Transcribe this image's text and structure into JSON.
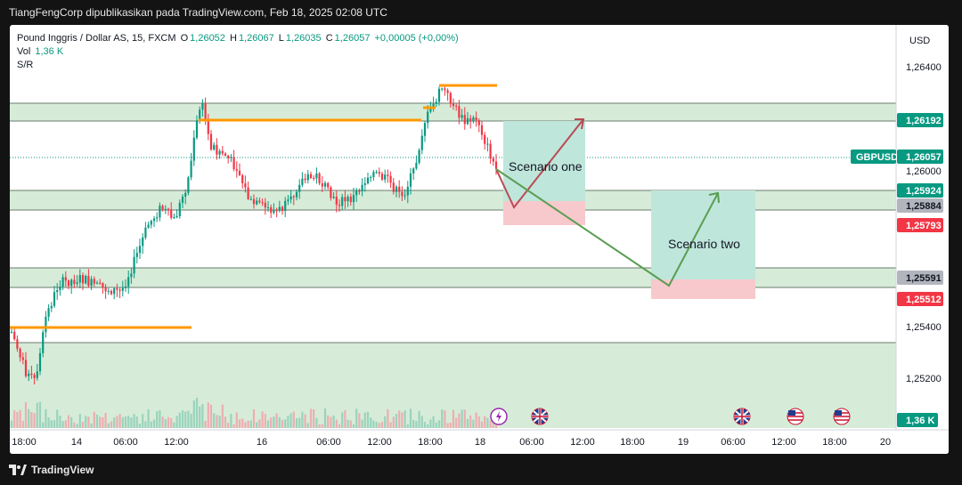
{
  "header": {
    "publish_line": "TiangFengCorp dipublikasikan pada TradingView.com, Feb 18, 2025 02:08 UTC"
  },
  "legend": {
    "symbol_line": "Pound Inggris / Dollar AS, 15, FXCM",
    "ohlc": {
      "o_label": "O",
      "o": "1,26052",
      "h_label": "H",
      "h": "1,26067",
      "l_label": "L",
      "l": "1,26035",
      "c_label": "C",
      "c": "1,26057",
      "change": "+0,00005 (+0,00%)"
    },
    "vol_label": "Vol",
    "vol_value": "1,36 K",
    "indicator": "S/R"
  },
  "price_axis": {
    "currency": "USD",
    "ticks": [
      "1,26400",
      "1,26000",
      "1,25400",
      "1,25200"
    ],
    "badges": [
      {
        "text": "1,26192",
        "color": "#089981"
      },
      {
        "text": "1,26057",
        "color": "#089981"
      },
      {
        "text": "1,25924",
        "color": "#089981"
      },
      {
        "text": "1,25884",
        "color": "#b2b5be"
      },
      {
        "text": "1,25793",
        "color": "#f23645"
      },
      {
        "text": "1,25591",
        "color": "#b2b5be"
      },
      {
        "text": "1,25512",
        "color": "#f23645"
      },
      {
        "text": "1,36 K",
        "color": "#089981"
      }
    ],
    "symbol_tag": "GBPUSD"
  },
  "time_axis": {
    "labels": [
      "18:00",
      "14",
      "06:00",
      "12:00",
      "16",
      "06:00",
      "12:00",
      "18:00",
      "18",
      "06:00",
      "12:00",
      "18:00",
      "19",
      "06:00",
      "12:00",
      "18:00",
      "20"
    ]
  },
  "annotations": {
    "scenario_one": "Scenario one",
    "scenario_two": "Scenario two"
  },
  "event_icons": [
    "lightning-icon",
    "uk-flag-icon",
    "uk-flag-icon",
    "us-flag-icon",
    "us-flag-icon"
  ],
  "footer": {
    "brand": "TradingView"
  },
  "colors": {
    "up": "#089981",
    "down": "#f23645",
    "sr_line": "#ff9800",
    "zone": "#d6ecd8",
    "target": "#bfe6db",
    "stop": "#f7c9cc"
  }
}
